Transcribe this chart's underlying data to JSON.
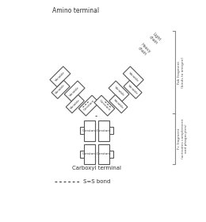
{
  "bg_color": "#ffffff",
  "line_color": "#555555",
  "title": "Amino terminal",
  "bottom_label": "Carboxyl terminal",
  "legend_label": "S=S bond",
  "fab_label": "Fab fragment\n(binds to antigen)",
  "fc_label": "Fc fragment\n(activates complement\nand phagocytes)",
  "light_chain_label": "Light\nchain",
  "heavy_chain_label": "Heavy\nchain",
  "lw": 0.8
}
